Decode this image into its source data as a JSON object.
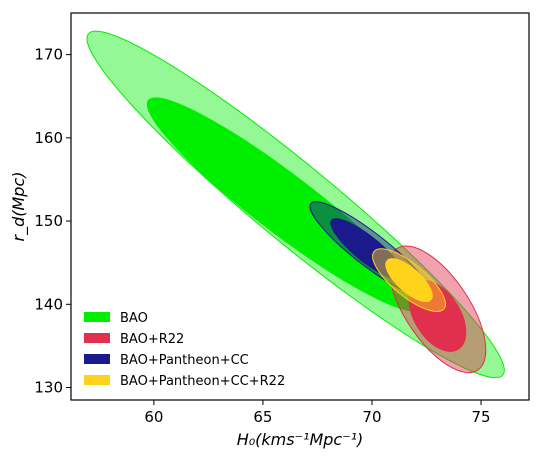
{
  "chart_data": {
    "type": "contour",
    "title": "",
    "xlabel": "H₀(kms⁻¹Mpc⁻¹)",
    "ylabel": "r_d(Mpc)",
    "xlim": [
      56.2,
      77.2
    ],
    "ylim": [
      128.5,
      175.0
    ],
    "xticks": [
      60,
      65,
      70,
      75
    ],
    "yticks": [
      130,
      140,
      150,
      160,
      170
    ],
    "legend_position": "lower-left",
    "series": [
      {
        "name": "BAO",
        "color": "#00ee00",
        "contours": [
          {
            "level": "2σ",
            "center": [
              66.5,
              152.0
            ],
            "extremes": [
              [
                57.0,
                172.0
              ],
              [
                76.0,
                131.0
              ]
            ],
            "width_ratio": 0.145,
            "opacity": 0.42
          },
          {
            "level": "1σ",
            "center": [
              66.0,
              152.0
            ],
            "extremes": [
              [
                59.8,
                164.5
              ],
              [
                72.3,
                139.5
              ]
            ],
            "width_ratio": 0.17,
            "opacity": 1.0
          }
        ]
      },
      {
        "name": "BAO+R22",
        "color": "#e0304e",
        "contours": [
          {
            "level": "2σ",
            "center": [
              73.0,
              139.4
            ],
            "extremes": [
              [
                71.2,
                146.2
              ],
              [
                74.9,
                131.6
              ]
            ],
            "width_ratio": 0.44,
            "opacity": 0.45
          },
          {
            "level": "1σ",
            "center": [
              73.0,
              138.6
            ],
            "extremes": [
              [
                72.0,
                142.4
              ],
              [
                73.9,
                134.4
              ]
            ],
            "width_ratio": 0.58,
            "opacity": 1.0
          }
        ]
      },
      {
        "name": "BAO+Pantheon+CC",
        "color": "#1a1a8c",
        "contours": [
          {
            "level": "2σ",
            "center": [
              69.9,
              146.6
            ],
            "extremes": [
              [
                67.1,
                151.9
              ],
              [
                72.5,
                140.9
              ]
            ],
            "width_ratio": 0.22,
            "opacity": 0.45
          },
          {
            "level": "1σ",
            "center": [
              69.8,
              146.6
            ],
            "extremes": [
              [
                68.1,
                150.0
              ],
              [
                71.4,
                143.0
              ]
            ],
            "width_ratio": 0.27,
            "opacity": 1.0
          }
        ]
      },
      {
        "name": "BAO+Pantheon+CC+R22",
        "color": "#ffd21c",
        "contours": [
          {
            "level": "2σ",
            "center": [
              71.7,
              142.9
            ],
            "extremes": [
              [
                70.0,
                146.5
              ],
              [
                73.2,
                139.6
              ]
            ],
            "width_ratio": 0.36,
            "opacity": 0.45
          },
          {
            "level": "1σ",
            "center": [
              71.7,
              142.9
            ],
            "extremes": [
              [
                70.7,
                145.3
              ],
              [
                72.7,
                140.6
              ]
            ],
            "width_ratio": 0.4,
            "opacity": 1.0
          }
        ]
      }
    ]
  }
}
